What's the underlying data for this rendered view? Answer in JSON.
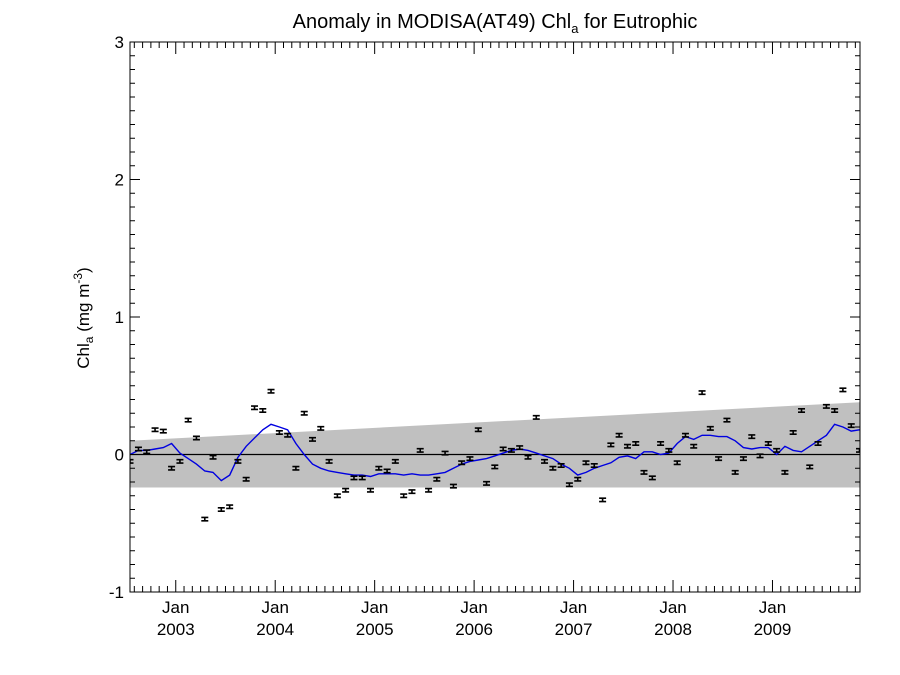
{
  "chart_data": {
    "type": "line",
    "title_main": "Anomaly in MODISA(AT49) Chl",
    "title_sub": "a",
    "title_tail": " for Eutrophic",
    "ylabel_main": "Chl",
    "ylabel_sub": "a",
    "ylabel_units": " (mg m",
    "ylabel_sup": "-3",
    "ylabel_close": ")",
    "xlim": [
      2002.54,
      2009.88
    ],
    "ylim": [
      -1,
      3
    ],
    "y_ticks": [
      -1,
      0,
      1,
      2,
      3
    ],
    "y_tick_labels": [
      "-1",
      "0",
      "1",
      "2",
      "3"
    ],
    "x_ticks": [
      2003.0,
      2004.0,
      2005.0,
      2006.0,
      2007.0,
      2008.0,
      2009.0
    ],
    "x_tick_month": "Jan",
    "x_tick_years": [
      "2003",
      "2004",
      "2005",
      "2006",
      "2007",
      "2008",
      "2009"
    ],
    "zero_line": 0,
    "trend_band": {
      "x": [
        2002.54,
        2009.88
      ],
      "upper": [
        0.1,
        0.38
      ],
      "lower": [
        -0.24,
        -0.24
      ],
      "color": "#c0c0c0"
    },
    "colors": {
      "smooth_line": "#0000e0",
      "points": "#000000"
    },
    "series": [
      {
        "kind": "points_with_error_bars",
        "error": 0.012,
        "x": [
          2002.54,
          2002.625,
          2002.708,
          2002.792,
          2002.875,
          2002.958,
          2003.042,
          2003.125,
          2003.208,
          2003.292,
          2003.375,
          2003.458,
          2003.542,
          2003.625,
          2003.708,
          2003.792,
          2003.875,
          2003.958,
          2004.042,
          2004.125,
          2004.208,
          2004.292,
          2004.375,
          2004.458,
          2004.542,
          2004.625,
          2004.708,
          2004.792,
          2004.875,
          2004.958,
          2005.042,
          2005.125,
          2005.208,
          2005.292,
          2005.375,
          2005.458,
          2005.542,
          2005.625,
          2005.708,
          2005.792,
          2005.875,
          2005.958,
          2006.042,
          2006.125,
          2006.208,
          2006.292,
          2006.375,
          2006.458,
          2006.542,
          2006.625,
          2006.708,
          2006.792,
          2006.875,
          2006.958,
          2007.042,
          2007.125,
          2007.208,
          2007.292,
          2007.375,
          2007.458,
          2007.542,
          2007.625,
          2007.708,
          2007.792,
          2007.875,
          2007.958,
          2008.042,
          2008.125,
          2008.208,
          2008.292,
          2008.375,
          2008.458,
          2008.542,
          2008.625,
          2008.708,
          2008.792,
          2008.875,
          2008.958,
          2009.042,
          2009.125,
          2009.208,
          2009.292,
          2009.375,
          2009.458,
          2009.542,
          2009.625,
          2009.708,
          2009.792,
          2009.875
        ],
        "y": [
          -0.05,
          0.04,
          0.02,
          0.18,
          0.17,
          -0.1,
          -0.05,
          0.25,
          0.12,
          -0.47,
          -0.02,
          -0.4,
          -0.38,
          -0.05,
          -0.18,
          0.34,
          0.32,
          0.46,
          0.16,
          0.14,
          -0.1,
          0.3,
          0.11,
          0.19,
          -0.05,
          -0.3,
          -0.26,
          -0.17,
          -0.17,
          -0.26,
          -0.1,
          -0.12,
          -0.05,
          -0.3,
          -0.27,
          0.03,
          -0.26,
          -0.18,
          0.01,
          -0.23,
          -0.06,
          -0.03,
          0.18,
          -0.21,
          -0.09,
          0.04,
          0.03,
          0.05,
          -0.02,
          0.27,
          -0.05,
          -0.1,
          -0.08,
          -0.22,
          -0.18,
          -0.06,
          -0.08,
          -0.33,
          0.07,
          0.14,
          0.06,
          0.08,
          -0.13,
          -0.17,
          0.08,
          0.03,
          -0.06,
          0.14,
          0.06,
          0.45,
          0.19,
          -0.03,
          0.25,
          -0.13,
          -0.03,
          0.13,
          -0.01,
          0.08,
          0.03,
          -0.13,
          0.16,
          0.32,
          -0.09,
          0.08,
          0.35,
          0.32,
          0.47,
          0.21,
          0.03
        ]
      },
      {
        "kind": "smoothed_line",
        "x": [
          2002.54,
          2002.625,
          2002.708,
          2002.792,
          2002.875,
          2002.958,
          2003.042,
          2003.125,
          2003.208,
          2003.292,
          2003.375,
          2003.458,
          2003.542,
          2003.625,
          2003.708,
          2003.792,
          2003.875,
          2003.958,
          2004.042,
          2004.125,
          2004.208,
          2004.292,
          2004.375,
          2004.458,
          2004.542,
          2004.625,
          2004.708,
          2004.792,
          2004.875,
          2004.958,
          2005.042,
          2005.125,
          2005.208,
          2005.292,
          2005.375,
          2005.458,
          2005.542,
          2005.625,
          2005.708,
          2005.792,
          2005.875,
          2005.958,
          2006.042,
          2006.125,
          2006.208,
          2006.292,
          2006.375,
          2006.458,
          2006.542,
          2006.625,
          2006.708,
          2006.792,
          2006.875,
          2006.958,
          2007.042,
          2007.125,
          2007.208,
          2007.292,
          2007.375,
          2007.458,
          2007.542,
          2007.625,
          2007.708,
          2007.792,
          2007.875,
          2007.958,
          2008.042,
          2008.125,
          2008.208,
          2008.292,
          2008.375,
          2008.458,
          2008.542,
          2008.625,
          2008.708,
          2008.792,
          2008.875,
          2008.958,
          2009.042,
          2009.125,
          2009.208,
          2009.292,
          2009.375,
          2009.458,
          2009.542,
          2009.625,
          2009.708,
          2009.792,
          2009.875
        ],
        "y": [
          0.0,
          0.03,
          0.03,
          0.04,
          0.05,
          0.08,
          0.01,
          -0.03,
          -0.07,
          -0.12,
          -0.13,
          -0.19,
          -0.15,
          -0.02,
          0.06,
          0.12,
          0.18,
          0.22,
          0.2,
          0.18,
          0.08,
          0.0,
          -0.07,
          -0.1,
          -0.12,
          -0.13,
          -0.14,
          -0.15,
          -0.15,
          -0.16,
          -0.14,
          -0.14,
          -0.14,
          -0.15,
          -0.14,
          -0.15,
          -0.15,
          -0.14,
          -0.13,
          -0.1,
          -0.07,
          -0.05,
          -0.04,
          -0.03,
          -0.01,
          0.01,
          0.03,
          0.04,
          0.03,
          0.01,
          -0.01,
          -0.03,
          -0.07,
          -0.1,
          -0.15,
          -0.13,
          -0.1,
          -0.08,
          -0.06,
          -0.02,
          -0.01,
          -0.03,
          0.02,
          0.02,
          0.0,
          0.01,
          0.08,
          0.13,
          0.11,
          0.14,
          0.14,
          0.13,
          0.13,
          0.1,
          0.05,
          0.04,
          0.05,
          0.05,
          0.0,
          0.06,
          0.03,
          0.02,
          0.06,
          0.1,
          0.14,
          0.22,
          0.2,
          0.17,
          0.18
        ]
      }
    ]
  }
}
